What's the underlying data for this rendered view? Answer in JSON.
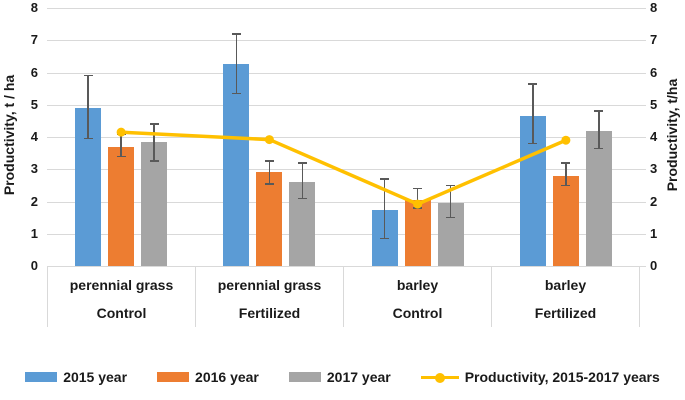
{
  "chart_data": {
    "type": "bar",
    "title": "",
    "legend_position": "bottom",
    "grid": true,
    "grid_color": "#d9d9d9",
    "error_bar_color": "#595959",
    "y_axis": {
      "min": 0,
      "max": 8,
      "step": 1,
      "left_label": "Productivity, t / ha",
      "right_label": "Productivity,  t/ha",
      "ticks": [
        0,
        1,
        2,
        3,
        4,
        5,
        6,
        7,
        8
      ]
    },
    "categories": [
      {
        "crop": "perennial grass",
        "treatment": "Control"
      },
      {
        "crop": "perennial grass",
        "treatment": "Fertilized"
      },
      {
        "crop": "barley",
        "treatment": "Control"
      },
      {
        "crop": "barley",
        "treatment": "Fertilized"
      }
    ],
    "series": [
      {
        "name": "2015 year",
        "color": "#5b9bd5",
        "values": [
          4.9,
          6.25,
          1.75,
          4.65
        ],
        "error_bars": [
          [
            3.95,
            5.9
          ],
          [
            5.35,
            7.2
          ],
          [
            0.85,
            2.7
          ],
          [
            3.8,
            5.65
          ]
        ]
      },
      {
        "name": "2016 year",
        "color": "#ed7d31",
        "values": [
          3.7,
          2.9,
          2.05,
          2.8
        ],
        "error_bars": [
          [
            3.4,
            4.1
          ],
          [
            2.55,
            3.25
          ],
          [
            1.8,
            2.4
          ],
          [
            2.5,
            3.2
          ]
        ]
      },
      {
        "name": "2017 year",
        "color": "#a5a5a5",
        "values": [
          3.85,
          2.6,
          1.95,
          4.2
        ],
        "error_bars": [
          [
            3.25,
            4.4
          ],
          [
            2.1,
            3.2
          ],
          [
            1.5,
            2.5
          ],
          [
            3.65,
            4.8
          ]
        ]
      }
    ],
    "line_series": {
      "name": "Productivity, 2015-2017 years",
      "color": "#ffc000",
      "values": [
        4.15,
        3.92,
        1.92,
        3.9
      ]
    }
  }
}
